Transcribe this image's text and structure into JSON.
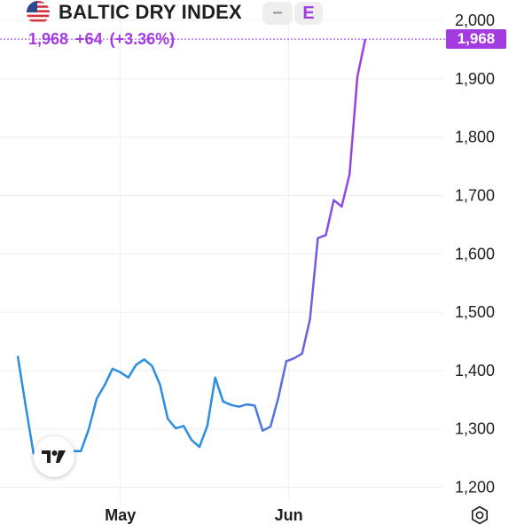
{
  "header": {
    "title": "BALTIC DRY INDEX",
    "minus_label": "−",
    "exchange_label": "E",
    "flag_icon": "us-flag-icon"
  },
  "quote": {
    "price": "1,968",
    "change": "+64",
    "change_pct": "(+3.36%)",
    "color": "#a23ce0"
  },
  "price_badge": "1,968",
  "colors": {
    "line_start": "#2b8ee0",
    "line_end": "#a23ce0",
    "grid": "#efefef"
  },
  "chart_data": {
    "type": "line",
    "title": "BALTIC DRY INDEX",
    "xlabel": "",
    "ylabel": "",
    "x_ticks": [
      "May",
      "Jun"
    ],
    "y_ticks": [
      "1,200",
      "1,300",
      "1,400",
      "1,500",
      "1,600",
      "1,700",
      "1,800",
      "1,900",
      "2,000"
    ],
    "ylim": [
      1175,
      2035
    ],
    "grid": true,
    "series": [
      {
        "values": [
          1425,
          1340,
          1258,
          1270,
          1280,
          1265,
          1245,
          1262,
          1262,
          1300,
          1352,
          1375,
          1403,
          1397,
          1388,
          1410,
          1419,
          1408,
          1376,
          1317,
          1301,
          1305,
          1281,
          1269,
          1305,
          1388,
          1347,
          1341,
          1338,
          1342,
          1340,
          1297,
          1304,
          1354,
          1416,
          1421,
          1429,
          1488,
          1627,
          1632,
          1692,
          1681,
          1736,
          1904,
          1968
        ]
      }
    ]
  },
  "logo": "tradingview-logo-icon",
  "settings_icon": "settings-icon"
}
